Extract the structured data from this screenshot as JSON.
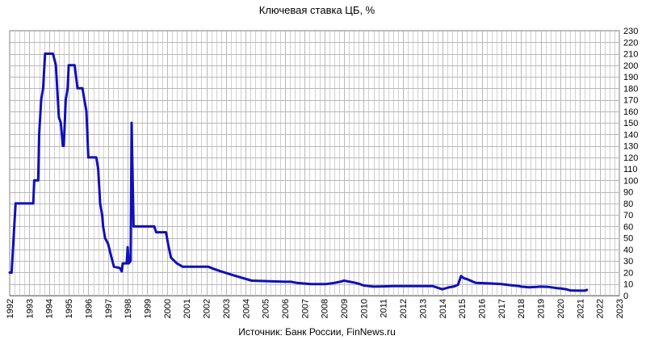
{
  "chart_data": {
    "type": "line",
    "title": "Ключевая ставка ЦБ, %",
    "source": "Источник: Банк России, FinNews.ru",
    "xlabel": "",
    "ylabel": "",
    "xlim": [
      1992,
      2023
    ],
    "ylim": [
      0,
      230
    ],
    "y_ticks": [
      0,
      10,
      20,
      30,
      40,
      50,
      60,
      70,
      80,
      90,
      100,
      110,
      120,
      130,
      140,
      150,
      160,
      170,
      180,
      190,
      200,
      210,
      220,
      230
    ],
    "x_ticks": [
      "1992",
      "1993",
      "1994",
      "1995",
      "1996",
      "1997",
      "1998",
      "1999",
      "2000",
      "2001",
      "2002",
      "2003",
      "2004",
      "2005",
      "2006",
      "2007",
      "2008",
      "2009",
      "2010",
      "2011",
      "2012",
      "2013",
      "2014",
      "2015",
      "2016",
      "2017",
      "2018",
      "2019",
      "2020",
      "2021",
      "2022",
      "2023"
    ],
    "grid": true,
    "y_axis_side": "right",
    "series_color": "#1010b8",
    "series": [
      {
        "name": "",
        "points": [
          [
            1992.0,
            20
          ],
          [
            1992.1,
            20
          ],
          [
            1992.3,
            80
          ],
          [
            1993.0,
            80
          ],
          [
            1993.2,
            80
          ],
          [
            1993.25,
            100
          ],
          [
            1993.45,
            100
          ],
          [
            1993.5,
            140
          ],
          [
            1993.6,
            170
          ],
          [
            1993.7,
            180
          ],
          [
            1993.8,
            210
          ],
          [
            1994.2,
            210
          ],
          [
            1994.35,
            200
          ],
          [
            1994.5,
            155
          ],
          [
            1994.6,
            150
          ],
          [
            1994.7,
            130
          ],
          [
            1994.75,
            130
          ],
          [
            1994.85,
            170
          ],
          [
            1994.95,
            180
          ],
          [
            1995.0,
            200
          ],
          [
            1995.3,
            200
          ],
          [
            1995.45,
            180
          ],
          [
            1995.7,
            180
          ],
          [
            1995.8,
            170
          ],
          [
            1995.9,
            160
          ],
          [
            1996.0,
            120
          ],
          [
            1996.4,
            120
          ],
          [
            1996.5,
            110
          ],
          [
            1996.6,
            80
          ],
          [
            1996.7,
            70
          ],
          [
            1996.75,
            60
          ],
          [
            1996.85,
            50
          ],
          [
            1997.0,
            45
          ],
          [
            1997.15,
            35
          ],
          [
            1997.3,
            25
          ],
          [
            1997.6,
            24
          ],
          [
            1997.7,
            21
          ],
          [
            1997.75,
            28
          ],
          [
            1997.95,
            28
          ],
          [
            1998.0,
            42
          ],
          [
            1998.05,
            28
          ],
          [
            1998.15,
            30
          ],
          [
            1998.2,
            150
          ],
          [
            1998.3,
            60
          ],
          [
            1999.35,
            60
          ],
          [
            1999.45,
            55
          ],
          [
            1999.95,
            55
          ],
          [
            2000.05,
            45
          ],
          [
            2000.2,
            33
          ],
          [
            2000.5,
            28
          ],
          [
            2000.8,
            25
          ],
          [
            2002.1,
            25
          ],
          [
            2002.4,
            23
          ],
          [
            2002.75,
            21
          ],
          [
            2003.3,
            18
          ],
          [
            2003.7,
            16
          ],
          [
            2004.3,
            13
          ],
          [
            2006.0,
            12
          ],
          [
            2006.3,
            12
          ],
          [
            2006.6,
            11
          ],
          [
            2007.3,
            10
          ],
          [
            2008.1,
            10
          ],
          [
            2008.5,
            11
          ],
          [
            2008.8,
            12
          ],
          [
            2009.0,
            13
          ],
          [
            2009.3,
            12
          ],
          [
            2009.6,
            11
          ],
          [
            2009.8,
            10
          ],
          [
            2010.0,
            8.8
          ],
          [
            2010.5,
            7.75
          ],
          [
            2011.0,
            8.0
          ],
          [
            2011.5,
            8.25
          ],
          [
            2012.5,
            8.25
          ],
          [
            2013.5,
            8.25
          ],
          [
            2014.0,
            5.5
          ],
          [
            2014.3,
            7.0
          ],
          [
            2014.6,
            8.0
          ],
          [
            2014.8,
            9.5
          ],
          [
            2014.95,
            17
          ],
          [
            2015.1,
            15
          ],
          [
            2015.3,
            14
          ],
          [
            2015.5,
            12.5
          ],
          [
            2015.7,
            11
          ],
          [
            2016.5,
            10.5
          ],
          [
            2017.0,
            10
          ],
          [
            2017.5,
            9.0
          ],
          [
            2017.9,
            8.25
          ],
          [
            2018.0,
            7.75
          ],
          [
            2018.4,
            7.25
          ],
          [
            2018.8,
            7.5
          ],
          [
            2019.0,
            7.75
          ],
          [
            2019.4,
            7.5
          ],
          [
            2019.8,
            6.5
          ],
          [
            2020.0,
            6.25
          ],
          [
            2020.3,
            5.5
          ],
          [
            2020.5,
            4.5
          ],
          [
            2020.9,
            4.25
          ],
          [
            2021.2,
            4.25
          ],
          [
            2021.3,
            4.5
          ],
          [
            2021.35,
            5.0
          ]
        ]
      }
    ]
  }
}
